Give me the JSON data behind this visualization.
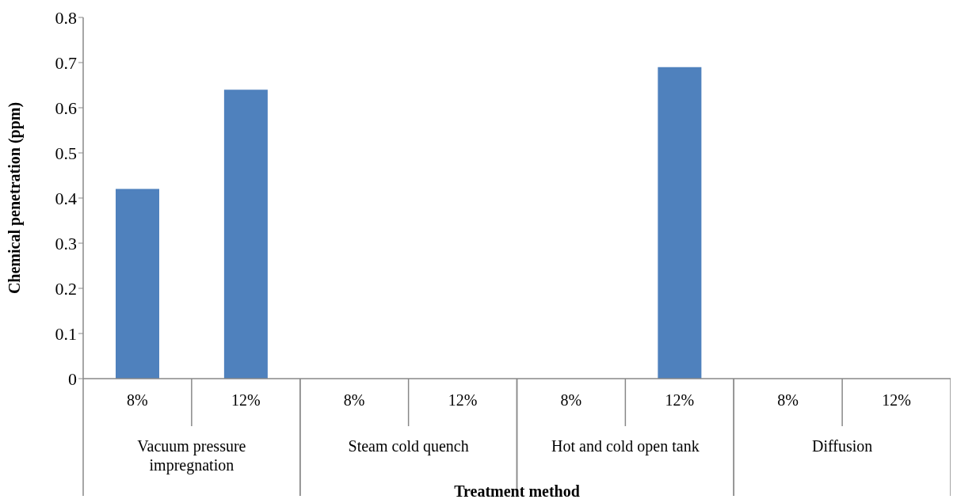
{
  "chart_data": {
    "type": "bar",
    "xlabel": "Treatment method",
    "ylabel": "Chemical penetration (ppm)",
    "categories": [
      "8%",
      "12%",
      "8%",
      "12%",
      "8%",
      "12%",
      "8%",
      "12%"
    ],
    "values": [
      0.42,
      0.64,
      0,
      0,
      0,
      0.69,
      0,
      0
    ],
    "color": "#4f81bd",
    "annotations": [
      "Vacuum pressure impregnation",
      "Steam cold quench",
      "Hot and cold open tank",
      "Diffusion"
    ],
    "ylim": [
      0,
      0.8
    ],
    "yticks": [
      0,
      0.1,
      0.2,
      0.3,
      0.4,
      0.5,
      0.6,
      0.7,
      0.8
    ]
  }
}
